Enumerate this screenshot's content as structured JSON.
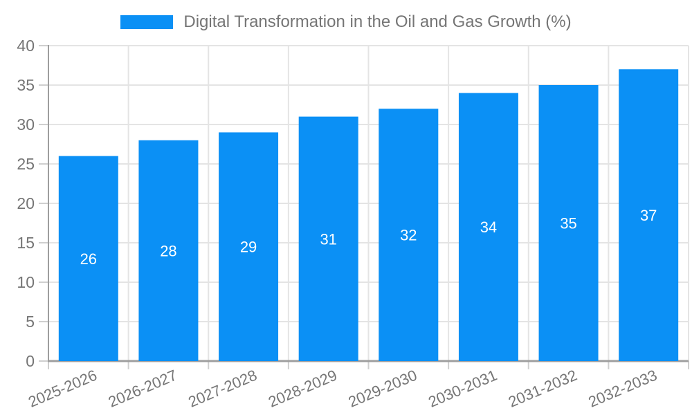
{
  "legend": {
    "label": "Digital Transformation in the Oil and Gas Growth (%)"
  },
  "chart_data": {
    "type": "bar",
    "title": "Digital Transformation in the Oil and Gas Growth (%)",
    "categories": [
      "2025-2026",
      "2026-2027",
      "2027-2028",
      "2028-2029",
      "2029-2030",
      "2030-2031",
      "2031-2032",
      "2032-2033"
    ],
    "values": [
      26,
      28,
      29,
      31,
      32,
      34,
      35,
      37
    ],
    "xlabel": "",
    "ylabel": "",
    "ylim": [
      0,
      40
    ],
    "ytick_step": 5,
    "yticks": [
      0,
      5,
      10,
      15,
      20,
      25,
      30,
      35,
      40
    ],
    "grid": true,
    "legend_position": "top",
    "bar_value_labels": true,
    "x_label_rotation_deg": -23,
    "colors": {
      "bar": "#0b90f5",
      "grid": "#e4e4e4",
      "tick": "#cfcfcf",
      "axis": "#9e9e9e",
      "text": "#757575",
      "bar_label": "#ffffff",
      "background": "#ffffff"
    }
  }
}
